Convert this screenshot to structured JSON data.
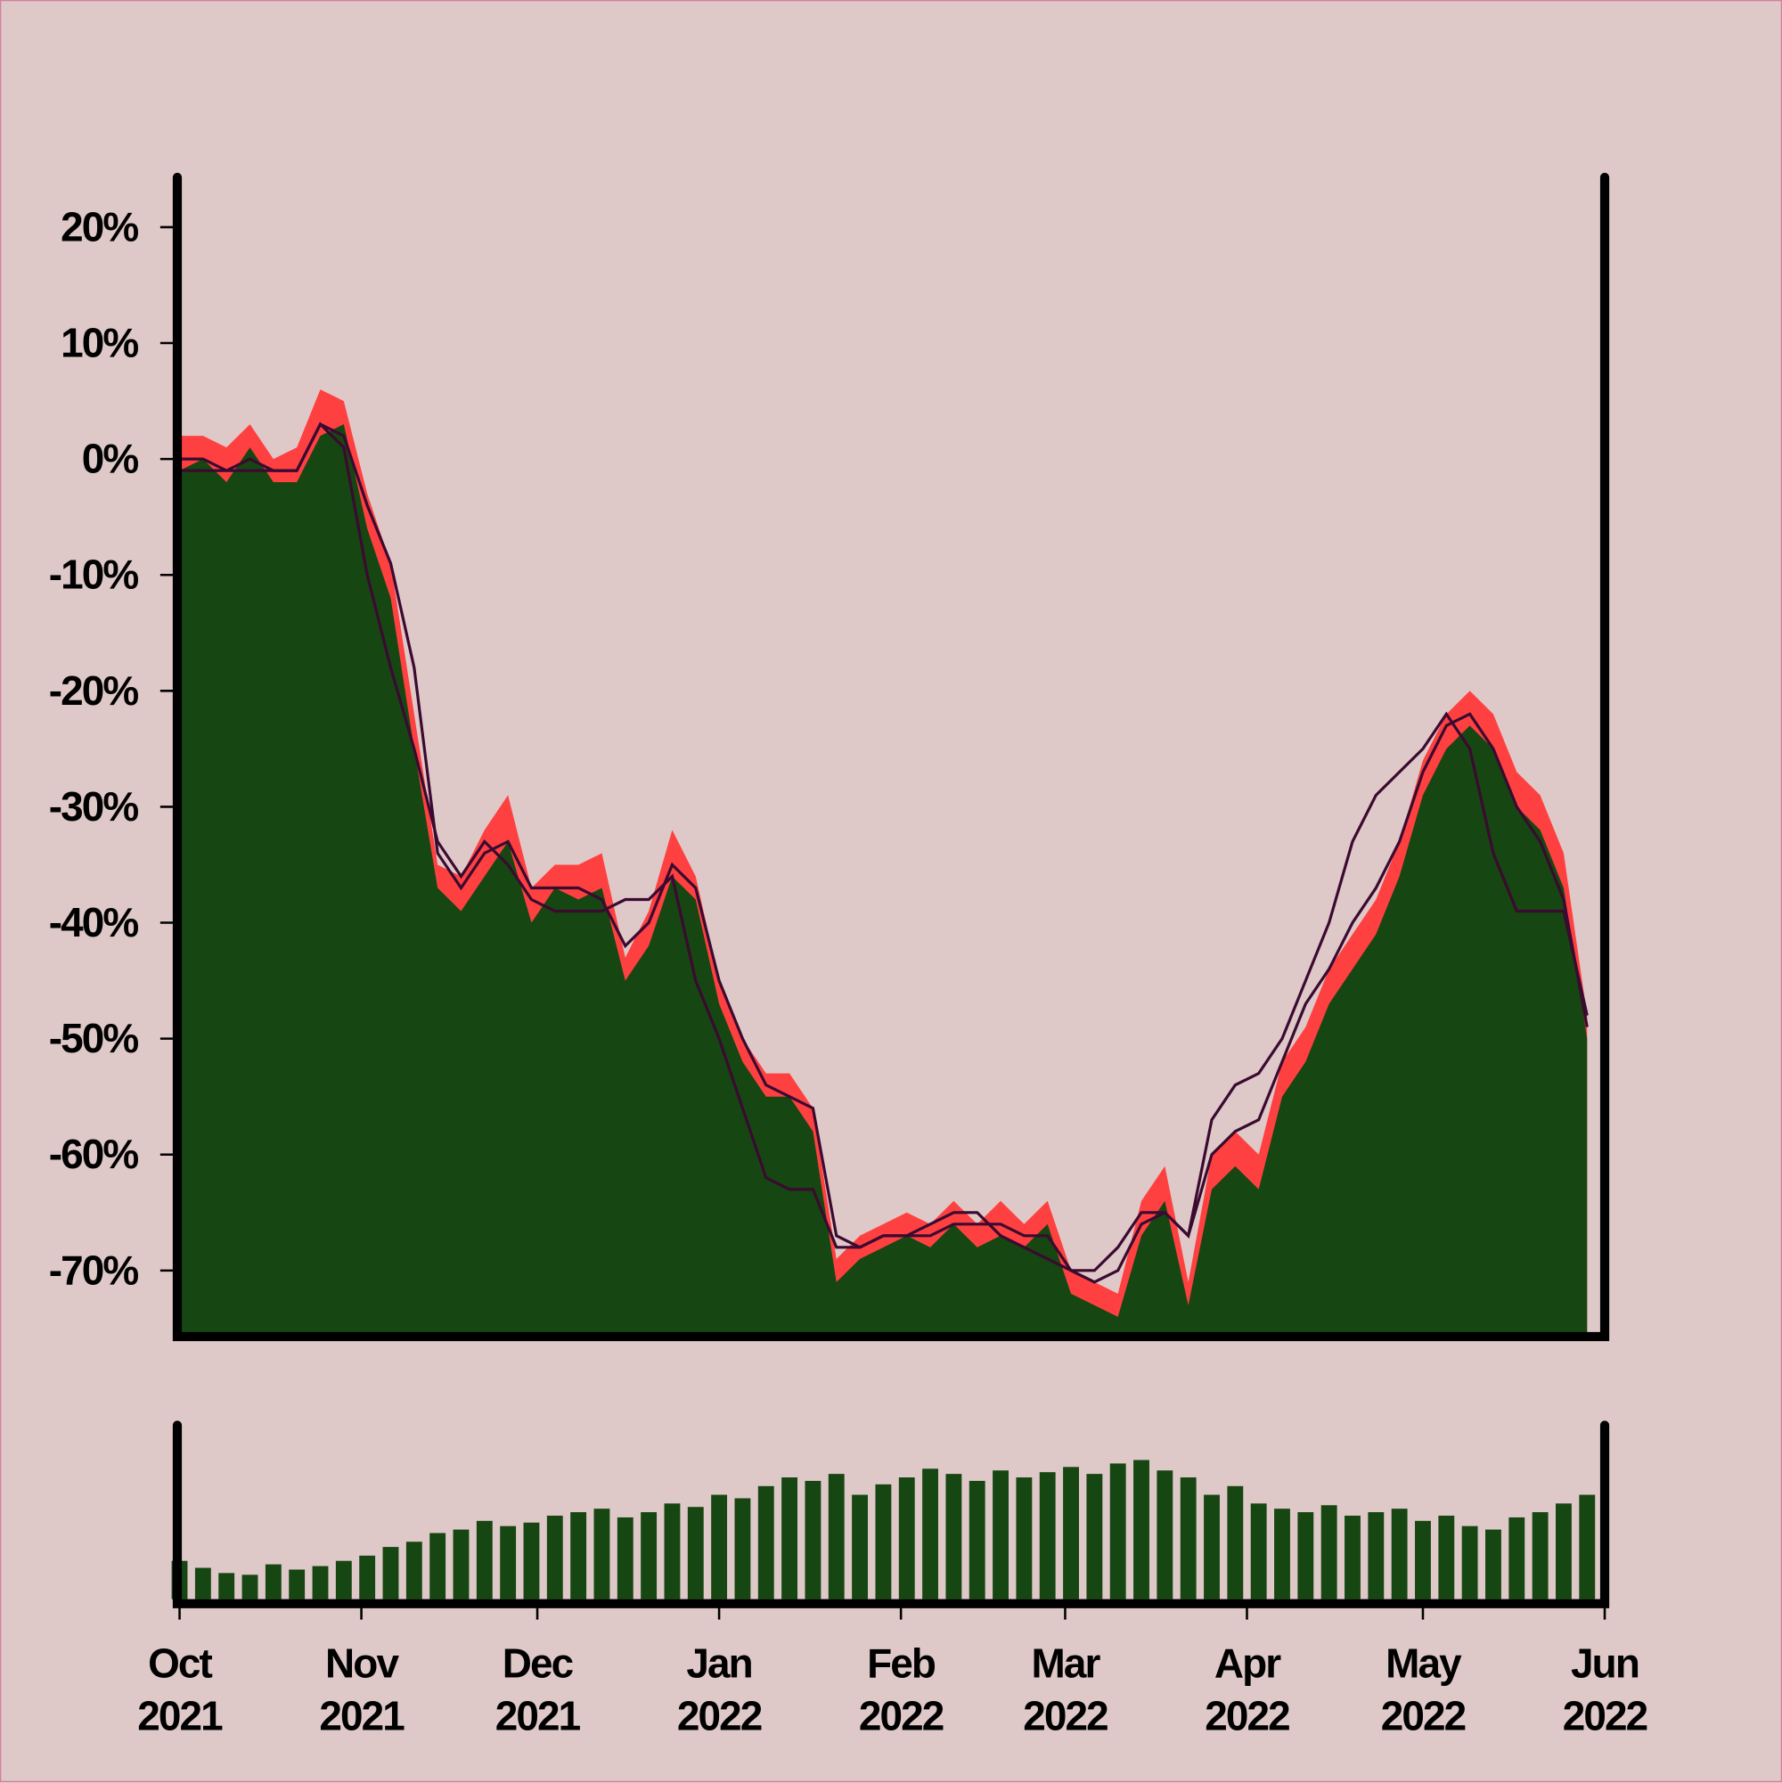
{
  "chart_data": [
    {
      "type": "area",
      "x": [
        "2021-10-01",
        "2021-10-05",
        "2021-10-09",
        "2021-10-13",
        "2021-10-17",
        "2021-10-21",
        "2021-10-25",
        "2021-10-29",
        "2021-11-02",
        "2021-11-06",
        "2021-11-10",
        "2021-11-14",
        "2021-11-18",
        "2021-11-22",
        "2021-11-26",
        "2021-11-30",
        "2021-12-04",
        "2021-12-08",
        "2021-12-12",
        "2021-12-16",
        "2021-12-20",
        "2021-12-24",
        "2021-12-28",
        "2022-01-01",
        "2022-01-05",
        "2022-01-09",
        "2022-01-13",
        "2022-01-17",
        "2022-01-21",
        "2022-01-25",
        "2022-01-29",
        "2022-02-02",
        "2022-02-06",
        "2022-02-10",
        "2022-02-14",
        "2022-02-18",
        "2022-02-22",
        "2022-02-26",
        "2022-03-02",
        "2022-03-06",
        "2022-03-10",
        "2022-03-14",
        "2022-03-18",
        "2022-03-22",
        "2022-03-26",
        "2022-03-30",
        "2022-04-03",
        "2022-04-07",
        "2022-04-11",
        "2022-04-15",
        "2022-04-19",
        "2022-04-23",
        "2022-04-27",
        "2022-05-01",
        "2022-05-05",
        "2022-05-09",
        "2022-05-13",
        "2022-05-17",
        "2022-05-21",
        "2022-05-25",
        "2022-05-29"
      ],
      "series": [
        {
          "color": "#ff4040",
          "values": [
            2,
            2,
            1,
            3,
            0,
            1,
            6,
            5,
            -3,
            -9,
            -22,
            -35,
            -36,
            -32,
            -29,
            -37,
            -35,
            -35,
            -34,
            -43,
            -39,
            -32,
            -36,
            -45,
            -50,
            -53,
            -53,
            -56,
            -69,
            -67,
            -66,
            -65,
            -66,
            -64,
            -66,
            -64,
            -66,
            -64,
            -70,
            -71,
            -72,
            -64,
            -61,
            -71,
            -60,
            -58,
            -60,
            -52,
            -49,
            -44,
            -41,
            -38,
            -33,
            -26,
            -22,
            -20,
            -22,
            -27,
            -29,
            -34,
            -48
          ]
        },
        {
          "color": "#164612",
          "values": [
            -1,
            0,
            -2,
            1,
            -2,
            -2,
            2,
            3,
            -6,
            -12,
            -25,
            -37,
            -39,
            -36,
            -33,
            -40,
            -37,
            -38,
            -37,
            -45,
            -42,
            -36,
            -38,
            -47,
            -52,
            -55,
            -55,
            -58,
            -71,
            -69,
            -68,
            -67,
            -68,
            -66,
            -68,
            -67,
            -68,
            -66,
            -72,
            -73,
            -74,
            -67,
            -64,
            -73,
            -63,
            -61,
            -63,
            -55,
            -52,
            -47,
            -44,
            -41,
            -36,
            -29,
            -25,
            -23,
            -25,
            -30,
            -32,
            -37,
            -50
          ]
        },
        {
          "color": "#3a0a30",
          "line": true,
          "values": [
            0,
            0,
            -1,
            0,
            -1,
            -1,
            3,
            2,
            -4,
            -9,
            -18,
            -34,
            -37,
            -34,
            -33,
            -37,
            -37,
            -37,
            -38,
            -42,
            -40,
            -35,
            -37,
            -45,
            -50,
            -54,
            -55,
            -56,
            -67,
            -68,
            -67,
            -67,
            -67,
            -66,
            -66,
            -66,
            -67,
            -67,
            -70,
            -71,
            -70,
            -66,
            -65,
            -67,
            -60,
            -58,
            -57,
            -52,
            -47,
            -44,
            -40,
            -37,
            -33,
            -27,
            -23,
            -22,
            -25,
            -30,
            -33,
            -38,
            -49
          ]
        },
        {
          "color": "#3a0a30",
          "line": true,
          "values": [
            -1,
            -1,
            -1,
            -1,
            -1,
            -1,
            3,
            1,
            -10,
            -18,
            -25,
            -33,
            -36,
            -33,
            -35,
            -38,
            -39,
            -39,
            -39,
            -38,
            -38,
            -36,
            -45,
            -50,
            -56,
            -62,
            -63,
            -63,
            -68,
            -68,
            -67,
            -67,
            -66,
            -65,
            -65,
            -67,
            -68,
            -69,
            -70,
            -70,
            -68,
            -65,
            -65,
            -67,
            -57,
            -54,
            -53,
            -50,
            -45,
            -40,
            -33,
            -29,
            -27,
            -25,
            -22,
            -25,
            -34,
            -39,
            -39,
            -39,
            -48
          ]
        }
      ],
      "xlim": [
        "2021-10-01",
        "2022-06-01"
      ],
      "ylim": [
        -75.7,
        24.3
      ],
      "yticks": [
        {
          "value": 20,
          "label": "20%"
        },
        {
          "value": 10,
          "label": "10%"
        },
        {
          "value": 0,
          "label": "0%"
        },
        {
          "value": -10,
          "label": "-10%"
        },
        {
          "value": -20,
          "label": "-20%"
        },
        {
          "value": -30,
          "label": "-30%"
        },
        {
          "value": -40,
          "label": "-40%"
        },
        {
          "value": -50,
          "label": "-50%"
        },
        {
          "value": -60,
          "label": "-60%"
        },
        {
          "value": -70,
          "label": "-70%"
        }
      ]
    },
    {
      "type": "bar",
      "color": "#164612",
      "values": [
        22,
        18,
        15,
        14,
        20,
        17,
        19,
        22,
        25,
        30,
        33,
        38,
        40,
        45,
        42,
        44,
        48,
        50,
        52,
        47,
        50,
        55,
        53,
        60,
        58,
        65,
        70,
        68,
        72,
        60,
        66,
        70,
        75,
        72,
        68,
        74,
        70,
        73,
        76,
        72,
        78,
        80,
        74,
        70,
        60,
        65,
        55,
        52,
        50,
        54,
        48,
        50,
        52,
        45,
        48,
        42,
        40,
        47,
        50,
        55,
        60
      ],
      "ylim": [
        0,
        100
      ],
      "xticks": [
        {
          "value": "2021-10-01",
          "label": "Oct\n2021"
        },
        {
          "value": "2021-11-01",
          "label": "Nov\n2021"
        },
        {
          "value": "2021-12-01",
          "label": "Dec\n2021"
        },
        {
          "value": "2022-01-01",
          "label": "Jan\n2022"
        },
        {
          "value": "2022-02-01",
          "label": "Feb\n2022"
        },
        {
          "value": "2022-03-01",
          "label": "Mar\n2022"
        },
        {
          "value": "2022-04-01",
          "label": "Apr\n2022"
        },
        {
          "value": "2022-05-01",
          "label": "May\n2022"
        },
        {
          "value": "2022-06-01",
          "label": "Jun\n2022"
        }
      ]
    }
  ]
}
